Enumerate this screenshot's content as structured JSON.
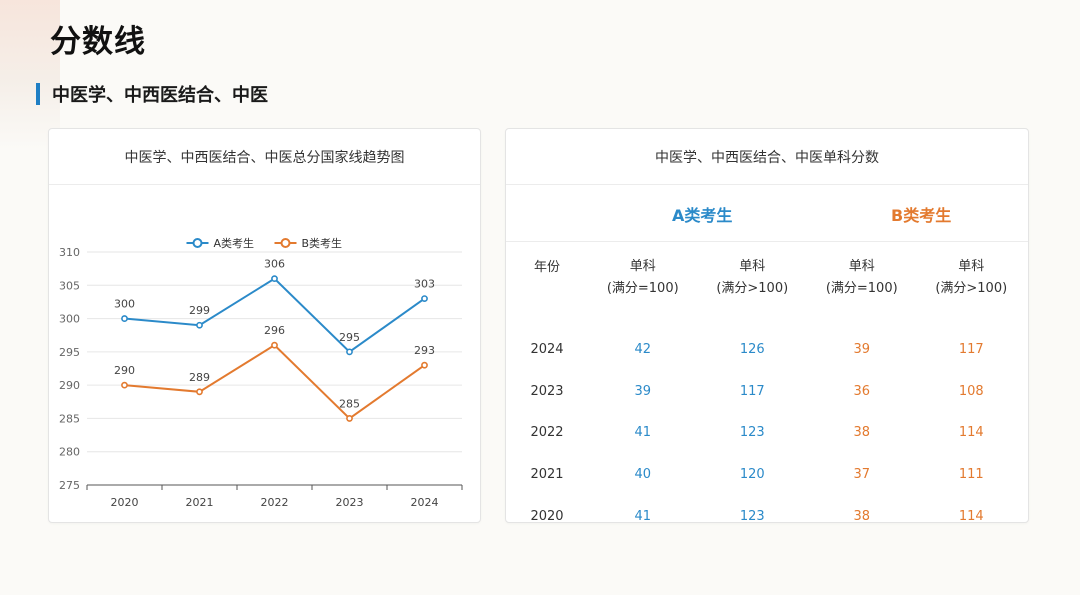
{
  "page": {
    "title": "分数线"
  },
  "section": {
    "title": "中医学、中西医结合、中医"
  },
  "chart_data": {
    "type": "line",
    "title": "中医学、中西医结合、中医总分国家线趋势图",
    "x": [
      "2020",
      "2021",
      "2022",
      "2023",
      "2024"
    ],
    "series": [
      {
        "name": "A类考生",
        "values": [
          300,
          299,
          306,
          295,
          303
        ],
        "color": "#2b8ac9"
      },
      {
        "name": "B类考生",
        "values": [
          290,
          289,
          296,
          285,
          293
        ],
        "color": "#e37a2f"
      }
    ],
    "ylim": [
      275,
      310
    ],
    "yticks": [
      275,
      280,
      285,
      290,
      295,
      300,
      305,
      310
    ],
    "xlabel": "",
    "ylabel": "",
    "grid": true,
    "legend": "top-center"
  },
  "table": {
    "title": "中医学、中西医结合、中医单科分数",
    "group_a": "A类考生",
    "group_b": "B类考生",
    "year_header": "年份",
    "col_headers": [
      {
        "line1": "单科",
        "line2": "(满分=100)"
      },
      {
        "line1": "单科",
        "line2": "(满分>100)"
      },
      {
        "line1": "单科",
        "line2": "(满分=100)"
      },
      {
        "line1": "单科",
        "line2": "(满分>100)"
      }
    ],
    "rows": [
      {
        "year": "2024",
        "a100": "42",
        "a_gt100": "126",
        "b100": "39",
        "b_gt100": "117"
      },
      {
        "year": "2023",
        "a100": "39",
        "a_gt100": "117",
        "b100": "36",
        "b_gt100": "108"
      },
      {
        "year": "2022",
        "a100": "41",
        "a_gt100": "123",
        "b100": "38",
        "b_gt100": "114"
      },
      {
        "year": "2021",
        "a100": "40",
        "a_gt100": "120",
        "b100": "37",
        "b_gt100": "111"
      },
      {
        "year": "2020",
        "a100": "41",
        "a_gt100": "123",
        "b100": "38",
        "b_gt100": "114"
      }
    ]
  },
  "colors": {
    "accent": "#1f7fc4",
    "series_a": "#2b8ac9",
    "series_b": "#e37a2f"
  }
}
